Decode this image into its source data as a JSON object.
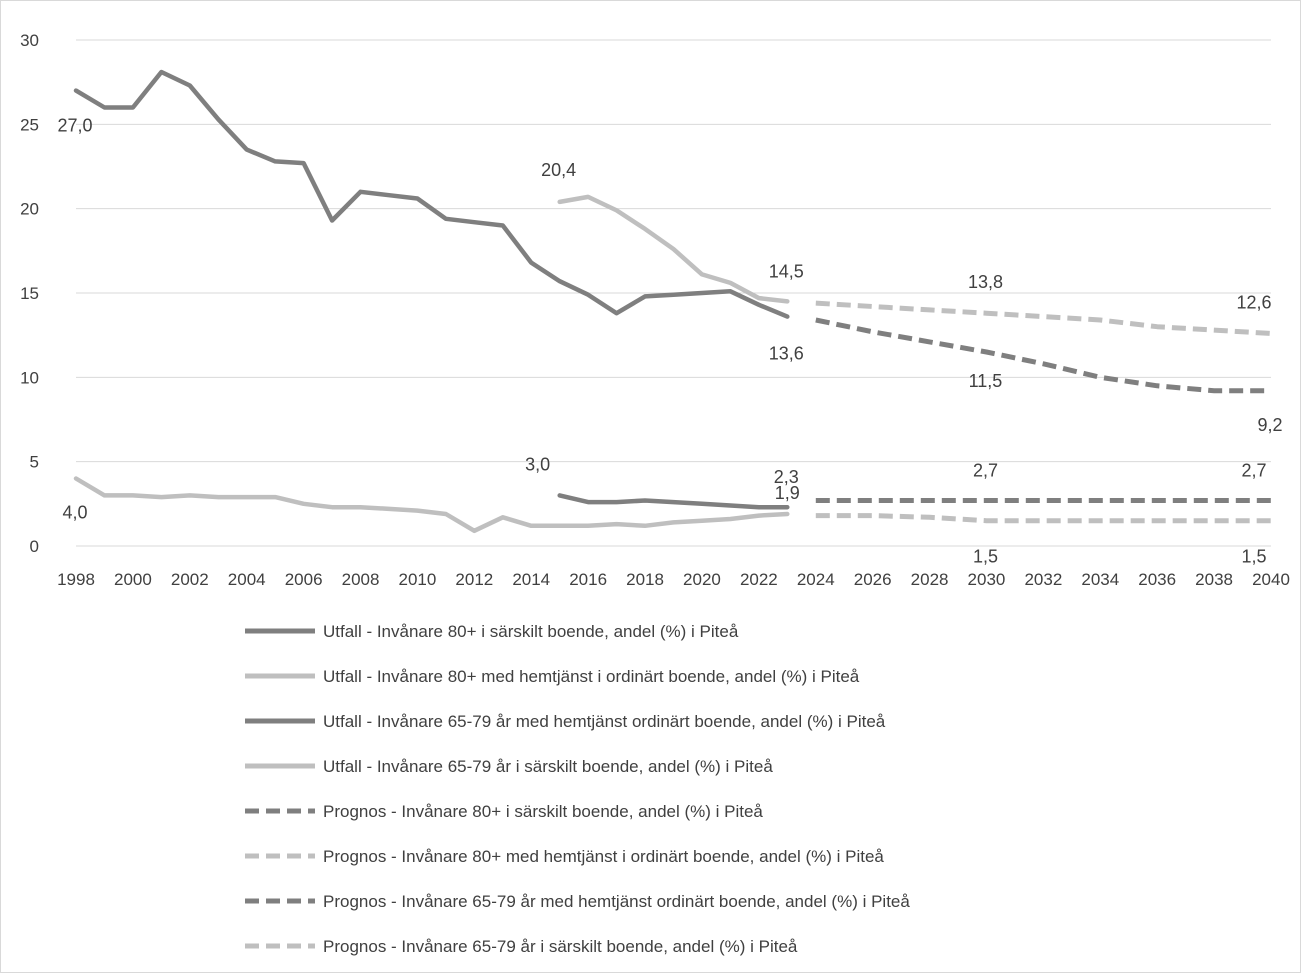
{
  "chart_data": {
    "type": "line",
    "title": "",
    "xlabel": "",
    "ylabel": "",
    "ylim": [
      0,
      30
    ],
    "xlim": [
      1998,
      2040
    ],
    "y_ticks": [
      "0",
      "5",
      "10",
      "15",
      "20",
      "25",
      "30"
    ],
    "x_ticks": [
      "1998",
      "2000",
      "2002",
      "2004",
      "2006",
      "2008",
      "2010",
      "2012",
      "2014",
      "2016",
      "2018",
      "2020",
      "2022",
      "2024",
      "2026",
      "2028",
      "2030",
      "2032",
      "2034",
      "2036",
      "2038",
      "2040"
    ],
    "grid": "horizontal",
    "legend_position": "bottom",
    "colors": {
      "dark": "#7f7f7f",
      "light": "#bfbfbf"
    },
    "series": [
      {
        "name": "Utfall - Invånare 80+ i särskilt boende, andel (%) i Piteå",
        "style": "solid",
        "color": "#7f7f7f",
        "x": [
          1998,
          1999,
          2000,
          2001,
          2002,
          2003,
          2004,
          2005,
          2006,
          2007,
          2008,
          2009,
          2010,
          2011,
          2012,
          2013,
          2014,
          2015,
          2016,
          2017,
          2018,
          2019,
          2020,
          2021,
          2022,
          2023
        ],
        "y": [
          27.0,
          26.0,
          26.0,
          28.1,
          27.3,
          25.3,
          23.5,
          22.8,
          22.7,
          19.3,
          21.0,
          20.8,
          20.6,
          19.4,
          19.2,
          19.0,
          16.8,
          15.7,
          14.9,
          13.8,
          14.8,
          14.9,
          15.0,
          15.1,
          14.3,
          13.6
        ],
        "labels": [
          {
            "i": 0,
            "text": "27,0"
          },
          {
            "i": 25,
            "text": "13,6"
          }
        ]
      },
      {
        "name": "Utfall - Invånare 80+ med hemtjänst i ordinärt boende, andel (%) i Piteå",
        "style": "solid",
        "color": "#bfbfbf",
        "x": [
          2015,
          2016,
          2017,
          2018,
          2019,
          2020,
          2021,
          2022,
          2023
        ],
        "y": [
          20.4,
          20.7,
          19.9,
          18.8,
          17.6,
          16.1,
          15.6,
          14.7,
          14.5
        ],
        "labels": [
          {
            "i": 0,
            "text": "20,4"
          },
          {
            "i": 8,
            "text": "14,5"
          }
        ]
      },
      {
        "name": "Utfall - Invånare 65-79 år med hemtjänst ordinärt boende, andel (%) i Piteå",
        "style": "solid",
        "color": "#7f7f7f",
        "x": [
          2015,
          2016,
          2017,
          2018,
          2019,
          2020,
          2021,
          2022,
          2023
        ],
        "y": [
          3.0,
          2.6,
          2.6,
          2.7,
          2.6,
          2.5,
          2.4,
          2.3,
          2.3
        ],
        "labels": [
          {
            "i": 0,
            "text": "3,0"
          },
          {
            "i": 8,
            "text": "2,3"
          }
        ]
      },
      {
        "name": "Utfall - Invånare 65-79 år i särskilt boende, andel (%) i Piteå",
        "style": "solid",
        "color": "#bfbfbf",
        "x": [
          1998,
          1999,
          2000,
          2001,
          2002,
          2003,
          2004,
          2005,
          2006,
          2007,
          2008,
          2009,
          2010,
          2011,
          2012,
          2013,
          2014,
          2015,
          2016,
          2017,
          2018,
          2019,
          2020,
          2021,
          2022,
          2023
        ],
        "y": [
          4.0,
          3.0,
          3.0,
          2.9,
          3.0,
          2.9,
          2.9,
          2.9,
          2.5,
          2.3,
          2.3,
          2.2,
          2.1,
          1.9,
          0.9,
          1.7,
          1.2,
          1.2,
          1.2,
          1.3,
          1.2,
          1.4,
          1.5,
          1.6,
          1.8,
          1.9
        ],
        "labels": [
          {
            "i": 0,
            "text": "4,0"
          },
          {
            "i": 25,
            "text": "1,9"
          }
        ]
      },
      {
        "name": "Prognos - Invånare 80+ i särskilt boende, andel (%) i Piteå",
        "style": "dashed",
        "color": "#7f7f7f",
        "x": [
          2024,
          2026,
          2028,
          2030,
          2032,
          2034,
          2036,
          2038,
          2040
        ],
        "y": [
          13.4,
          12.7,
          12.1,
          11.5,
          10.8,
          10.0,
          9.5,
          9.2,
          9.2
        ],
        "labels": [
          {
            "i": 3,
            "text": "11,5"
          },
          {
            "i": 8,
            "text": "9,2"
          }
        ]
      },
      {
        "name": "Prognos - Invånare 80+ med hemtjänst i ordinärt boende, andel (%) i Piteå",
        "style": "dashed",
        "color": "#bfbfbf",
        "x": [
          2024,
          2026,
          2028,
          2030,
          2032,
          2034,
          2036,
          2038,
          2040
        ],
        "y": [
          14.4,
          14.2,
          14.0,
          13.8,
          13.6,
          13.4,
          13.0,
          12.8,
          12.6
        ],
        "labels": [
          {
            "i": 3,
            "text": "13,8"
          },
          {
            "i": 8,
            "text": "12,6"
          }
        ]
      },
      {
        "name": "Prognos - Invånare 65-79 år med hemtjänst ordinärt boende, andel (%) i Piteå",
        "style": "dashed",
        "color": "#7f7f7f",
        "x": [
          2024,
          2026,
          2028,
          2030,
          2032,
          2034,
          2036,
          2038,
          2040
        ],
        "y": [
          2.7,
          2.7,
          2.7,
          2.7,
          2.7,
          2.7,
          2.7,
          2.7,
          2.7
        ],
        "labels": [
          {
            "i": 3,
            "text": "2,7"
          },
          {
            "i": 8,
            "text": "2,7"
          }
        ]
      },
      {
        "name": "Prognos - Invånare 65-79 år i särskilt boende, andel (%) i Piteå",
        "style": "dashed",
        "color": "#bfbfbf",
        "x": [
          2024,
          2026,
          2028,
          2030,
          2032,
          2034,
          2036,
          2038,
          2040
        ],
        "y": [
          1.8,
          1.8,
          1.7,
          1.5,
          1.5,
          1.5,
          1.5,
          1.5,
          1.5
        ],
        "labels": [
          {
            "i": 3,
            "text": "1,5"
          },
          {
            "i": 8,
            "text": "1,5"
          }
        ]
      }
    ]
  }
}
